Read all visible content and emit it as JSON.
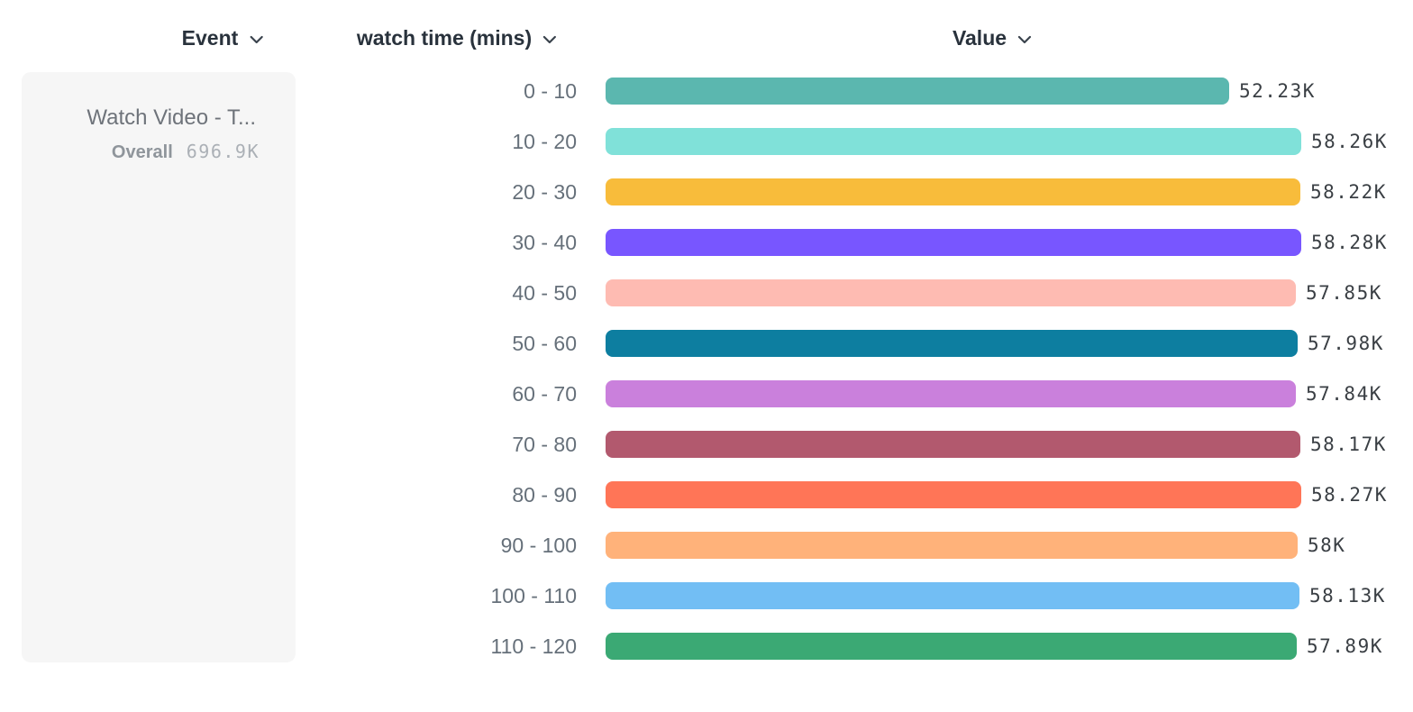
{
  "header": {
    "event_label": "Event",
    "breakdown_label": "watch time (mins)",
    "value_label": "Value"
  },
  "event_card": {
    "title": "Watch Video - T...",
    "overall_label": "Overall",
    "overall_value": "696.9K"
  },
  "chart_data": {
    "type": "bar",
    "orientation": "horizontal",
    "title": "",
    "xlabel": "Value",
    "ylabel": "watch time (mins)",
    "categories": [
      "0 - 10",
      "10 - 20",
      "20 - 30",
      "30 - 40",
      "40 - 50",
      "50 - 60",
      "60 - 70",
      "70 - 80",
      "80 - 90",
      "90 - 100",
      "100 - 110",
      "110 - 120"
    ],
    "values": [
      52230,
      58260,
      58220,
      58280,
      57850,
      57980,
      57840,
      58170,
      58270,
      58000,
      58130,
      57890
    ],
    "value_labels": [
      "52.23K",
      "58.26K",
      "58.22K",
      "58.28K",
      "57.85K",
      "57.98K",
      "57.84K",
      "58.17K",
      "58.27K",
      "58K",
      "58.13K",
      "57.89K"
    ],
    "bar_colors": [
      "#5BB7AF",
      "#80E1D9",
      "#F8BC3B",
      "#7856FF",
      "#FEBBB2",
      "#0D7EA0",
      "#CA80DC",
      "#B2596E",
      "#FF7557",
      "#FFB27A",
      "#72BEF4",
      "#3BA974"
    ],
    "xlim": [
      0,
      58280
    ],
    "grid": false,
    "legend_position": "left-card"
  },
  "colors": {
    "card_bg": "#f6f6f6",
    "header_text": "#29323c",
    "category_text": "#66707a",
    "value_text": "#3a3f44"
  },
  "layout": {
    "row_top_start": 86,
    "row_spacing": 56,
    "bar_left": 672,
    "bar_max_width": 772,
    "value_gap": 11
  }
}
